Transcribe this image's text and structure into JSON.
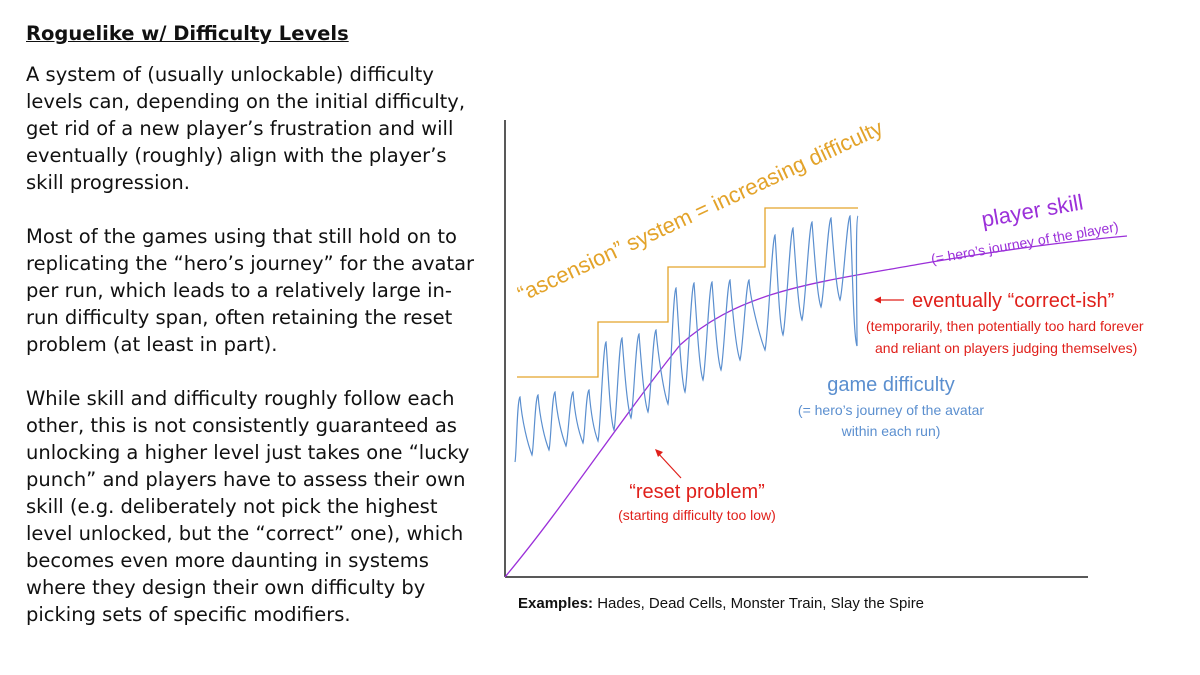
{
  "slide": {
    "title": "Roguelike w/ Difficulty Levels",
    "paragraphs": [
      "A system of (usually unlockable) difficulty levels can, depending on the initial difficulty, get rid of a new player’s frustration and will eventually (roughly) align with the player’s skill progression.",
      "Most  of the games using that still hold on to replicating the “hero’s journey” for the avatar per run, which leads to a relatively large in-run difficulty span, often retaining the reset problem (at least in part).",
      "While skill and difficulty roughly follow each other, this is not consistently guaranteed as unlocking a higher level just takes one “lucky punch” and players have to assess their own skill (e.g. deliberately not pick the highest level unlocked, but the “correct” one), which becomes even more daunting in systems where they design their own difficulty by picking sets of specific modifiers."
    ]
  },
  "diagram": {
    "ascension_label": "“ascension” system = increasing difficulty",
    "player_skill_label": "player skill",
    "player_skill_sub": "(= hero’s journey of the player)",
    "correct_label": "eventually “correct-ish”",
    "correct_sub_1": "(temporarily, then potentially too hard forever",
    "correct_sub_2": "and reliant on players judging themselves)",
    "game_difficulty_label": "game difficulty",
    "game_difficulty_sub_1": "(= hero’s journey of the avatar",
    "game_difficulty_sub_2": "within each run)",
    "reset_label": "“reset problem”",
    "reset_sub": "(starting difficulty too low)"
  },
  "examples": {
    "prefix": "Examples:",
    "list": " Hades, Dead Cells, Monster Train, Slay the Spire"
  },
  "colors": {
    "ascension": "#e3a32a",
    "player_skill": "#9b30d9",
    "game_difficulty": "#5b8fcf",
    "annotation_red": "#e0201b",
    "axis": "#222222"
  }
}
